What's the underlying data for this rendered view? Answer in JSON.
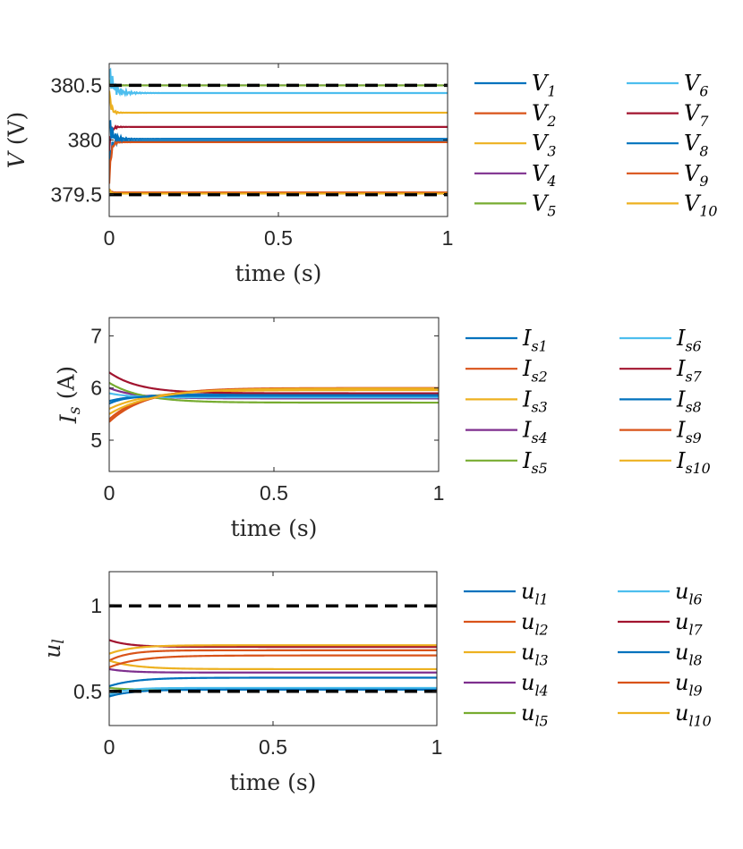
{
  "figure": {
    "x_ticks": [
      "0",
      "0.5",
      "1"
    ],
    "x_label": "time (s)"
  },
  "chart_data": [
    {
      "type": "line",
      "name": "voltage",
      "ylabel_sym": "V",
      "ylabel_unit": " (V)",
      "xlim": [
        0,
        1
      ],
      "ylim": [
        379.3,
        380.7
      ],
      "y_ticks": [
        379.5,
        380,
        380.5
      ],
      "y_tick_labels": [
        "379.5",
        "380",
        "380.5"
      ],
      "dashed_limits": [
        380.5,
        379.5
      ],
      "legend": [
        {
          "base": "V",
          "sub": "1"
        },
        {
          "base": "V",
          "sub": "2"
        },
        {
          "base": "V",
          "sub": "3"
        },
        {
          "base": "V",
          "sub": "4"
        },
        {
          "base": "V",
          "sub": "5"
        },
        {
          "base": "V",
          "sub": "6"
        },
        {
          "base": "V",
          "sub": "7"
        },
        {
          "base": "V",
          "sub": "8"
        },
        {
          "base": "V",
          "sub": "9"
        },
        {
          "base": "V",
          "sub": "10"
        }
      ],
      "series": [
        {
          "start": 379.78,
          "final": 379.99,
          "tau": 0.006,
          "osc": 0.08
        },
        {
          "start": 379.6,
          "final": 379.98,
          "tau": 0.005,
          "osc": 0.05
        },
        {
          "start": 380.45,
          "final": 380.25,
          "tau": 0.005,
          "osc": 0.05
        },
        {
          "start": 380.55,
          "final": 380.5,
          "tau": 0.004,
          "osc": 0.02
        },
        {
          "start": 380.55,
          "final": 380.5,
          "tau": 0.004,
          "osc": 0.02
        },
        {
          "start": 380.63,
          "final": 380.43,
          "tau": 0.012,
          "osc": 0.1
        },
        {
          "start": 379.9,
          "final": 380.12,
          "tau": 0.005,
          "osc": 0.05
        },
        {
          "start": 380.17,
          "final": 380.01,
          "tau": 0.008,
          "osc": 0.1
        },
        {
          "start": 379.55,
          "final": 379.52,
          "tau": 0.004,
          "osc": 0.01
        },
        {
          "start": 379.55,
          "final": 379.51,
          "tau": 0.004,
          "osc": 0.01
        }
      ]
    },
    {
      "type": "line",
      "name": "source-current",
      "ylabel_sym": "I",
      "ylabel_sub": "s",
      "ylabel_unit": " (A)",
      "xlim": [
        0,
        1
      ],
      "ylim": [
        4.4,
        7.35
      ],
      "y_ticks": [
        5,
        6,
        7
      ],
      "y_tick_labels": [
        "5",
        "6",
        "7"
      ],
      "dashed_limits": [],
      "legend": [
        {
          "base": "I",
          "sub": "s1"
        },
        {
          "base": "I",
          "sub": "s2"
        },
        {
          "base": "I",
          "sub": "s3"
        },
        {
          "base": "I",
          "sub": "s4"
        },
        {
          "base": "I",
          "sub": "s5"
        },
        {
          "base": "I",
          "sub": "s6"
        },
        {
          "base": "I",
          "sub": "s7"
        },
        {
          "base": "I",
          "sub": "s8"
        },
        {
          "base": "I",
          "sub": "s9"
        },
        {
          "base": "I",
          "sub": "s10"
        }
      ],
      "series": [
        {
          "start": 5.75,
          "final": 5.88,
          "tau": 0.08,
          "osc": 0
        },
        {
          "start": 5.4,
          "final": 5.97,
          "tau": 0.1,
          "osc": 0
        },
        {
          "start": 5.6,
          "final": 5.96,
          "tau": 0.12,
          "osc": 0
        },
        {
          "start": 6.0,
          "final": 5.8,
          "tau": 0.08,
          "osc": 0
        },
        {
          "start": 6.1,
          "final": 5.72,
          "tau": 0.1,
          "osc": 0
        },
        {
          "start": 5.9,
          "final": 5.82,
          "tau": 0.06,
          "osc": 0
        },
        {
          "start": 6.3,
          "final": 5.9,
          "tau": 0.09,
          "osc": 0
        },
        {
          "start": 5.7,
          "final": 5.85,
          "tau": 0.05,
          "osc": 0
        },
        {
          "start": 5.35,
          "final": 6.0,
          "tau": 0.11,
          "osc": 0
        },
        {
          "start": 5.5,
          "final": 5.99,
          "tau": 0.13,
          "osc": 0
        }
      ]
    },
    {
      "type": "line",
      "name": "control-input",
      "ylabel_sym": "u",
      "ylabel_sub": "l",
      "ylabel_unit": "",
      "xlim": [
        0,
        1
      ],
      "ylim": [
        0.3,
        1.2
      ],
      "y_ticks": [
        0.5,
        1
      ],
      "y_tick_labels": [
        "0.5",
        "1"
      ],
      "dashed_limits": [
        1.0,
        0.5
      ],
      "legend": [
        {
          "base": "u",
          "sub": "l1"
        },
        {
          "base": "u",
          "sub": "l2"
        },
        {
          "base": "u",
          "sub": "l3"
        },
        {
          "base": "u",
          "sub": "l4"
        },
        {
          "base": "u",
          "sub": "l5"
        },
        {
          "base": "u",
          "sub": "l6"
        },
        {
          "base": "u",
          "sub": "l7"
        },
        {
          "base": "u",
          "sub": "l8"
        },
        {
          "base": "u",
          "sub": "l9"
        },
        {
          "base": "u",
          "sub": "l10"
        }
      ],
      "series": [
        {
          "start": 0.53,
          "final": 0.58,
          "tau": 0.08,
          "osc": 0
        },
        {
          "start": 0.68,
          "final": 0.74,
          "tau": 0.06,
          "osc": 0
        },
        {
          "start": 0.68,
          "final": 0.63,
          "tau": 0.08,
          "osc": 0
        },
        {
          "start": 0.63,
          "final": 0.61,
          "tau": 0.06,
          "osc": 0
        },
        {
          "start": 0.52,
          "final": 0.51,
          "tau": 0.05,
          "osc": 0
        },
        {
          "start": 0.48,
          "final": 0.52,
          "tau": 0.05,
          "osc": 0
        },
        {
          "start": 0.8,
          "final": 0.76,
          "tau": 0.06,
          "osc": 0
        },
        {
          "start": 0.47,
          "final": 0.51,
          "tau": 0.07,
          "osc": 0
        },
        {
          "start": 0.64,
          "final": 0.71,
          "tau": 0.09,
          "osc": 0
        },
        {
          "start": 0.72,
          "final": 0.77,
          "tau": 0.07,
          "osc": 0
        }
      ]
    }
  ],
  "colors": [
    "#0072BD",
    "#D95319",
    "#EDB120",
    "#7E2F8E",
    "#77AC30",
    "#4DBEEE",
    "#A2142F",
    "#0072BD",
    "#D95319",
    "#EDB120"
  ],
  "dashed_color": "#000000"
}
